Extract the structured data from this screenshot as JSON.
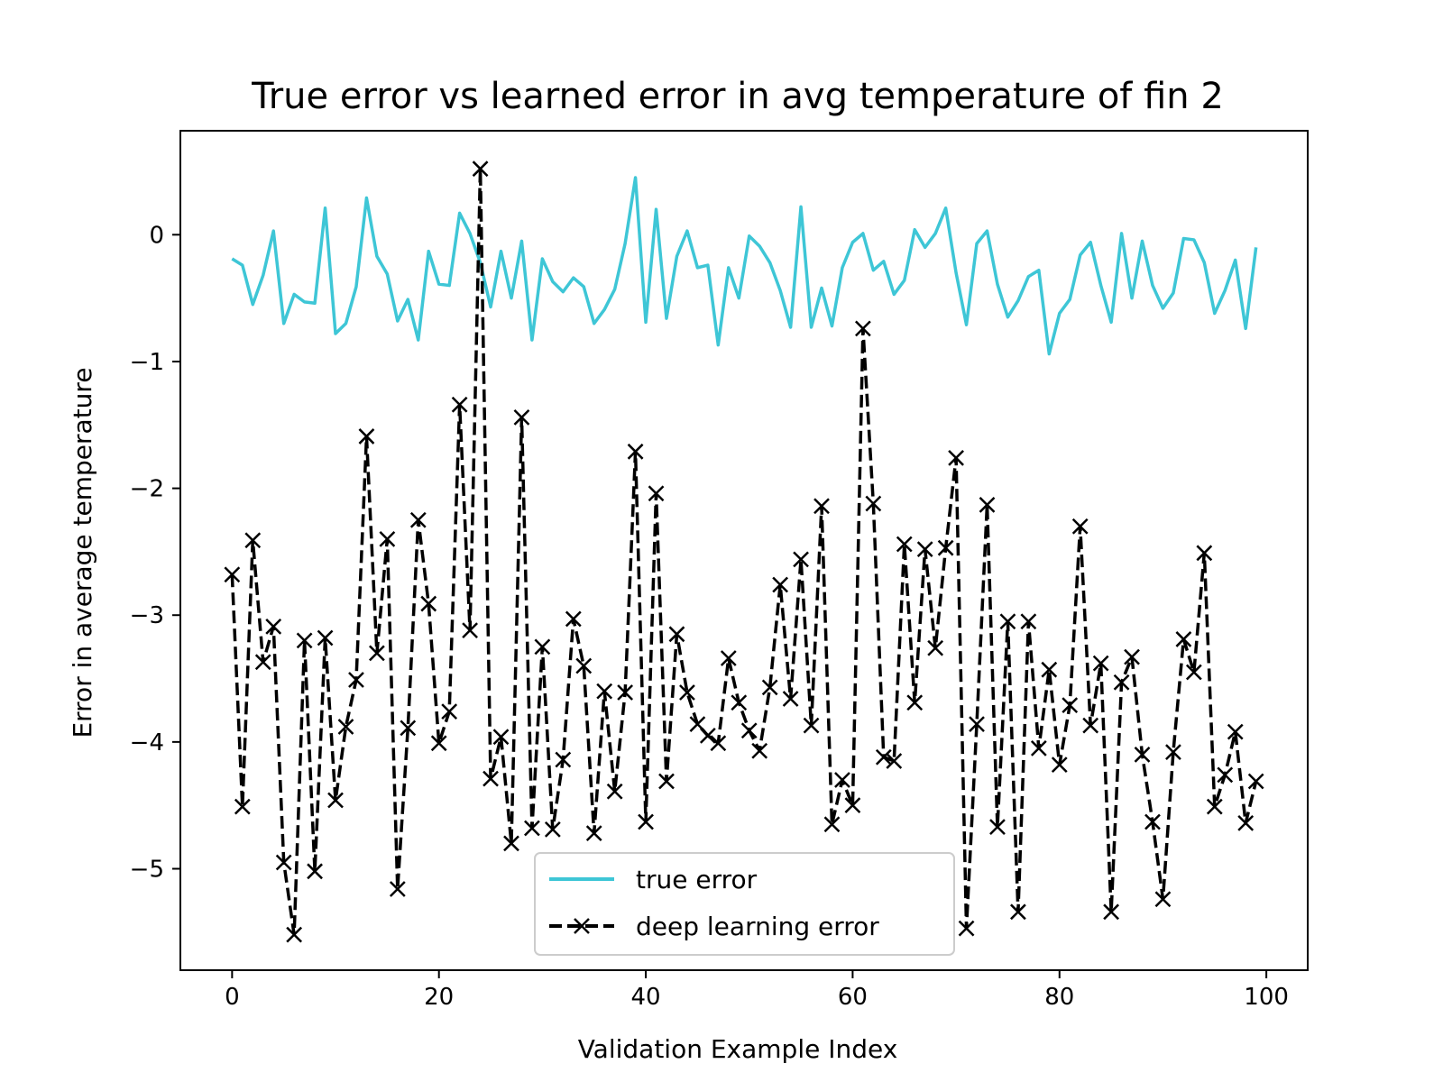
{
  "chart_data": {
    "type": "line",
    "title": "True error vs learned error in avg temperature of fin 2",
    "xlabel": "Validation Example Index",
    "ylabel": "Error in average temperature",
    "xlim": [
      -5,
      104
    ],
    "ylim": [
      -5.8,
      0.82
    ],
    "xticks": [
      0,
      20,
      40,
      60,
      80,
      100
    ],
    "yticks": [
      0,
      -1,
      -2,
      -3,
      -4,
      -5
    ],
    "xtick_labels": [
      "0",
      "20",
      "40",
      "60",
      "80",
      "100"
    ],
    "ytick_labels": [
      "0",
      "−1",
      "−2",
      "−3",
      "−4",
      "−5"
    ],
    "grid": false,
    "legend_position": "bottom-center",
    "series": [
      {
        "name": "true error",
        "color": "#3ec6d6",
        "style": "solid",
        "marker": "none",
        "values": [
          -0.19,
          -0.24,
          -0.55,
          -0.32,
          0.03,
          -0.7,
          -0.47,
          -0.53,
          -0.54,
          0.21,
          -0.78,
          -0.7,
          -0.41,
          0.29,
          -0.17,
          -0.31,
          -0.68,
          -0.51,
          -0.83,
          -0.13,
          -0.39,
          -0.4,
          0.17,
          0.01,
          -0.22,
          -0.57,
          -0.13,
          -0.5,
          -0.05,
          -0.83,
          -0.19,
          -0.37,
          -0.45,
          -0.34,
          -0.41,
          -0.7,
          -0.59,
          -0.43,
          -0.07,
          0.45,
          -0.69,
          0.2,
          -0.66,
          -0.17,
          0.03,
          -0.26,
          -0.24,
          -0.87,
          -0.26,
          -0.5,
          -0.01,
          -0.09,
          -0.22,
          -0.44,
          -0.73,
          0.22,
          -0.73,
          -0.42,
          -0.72,
          -0.26,
          -0.06,
          0.01,
          -0.28,
          -0.21,
          -0.47,
          -0.36,
          0.04,
          -0.1,
          0.01,
          0.21,
          -0.3,
          -0.71,
          -0.07,
          0.03,
          -0.39,
          -0.65,
          -0.52,
          -0.33,
          -0.28,
          -0.94,
          -0.62,
          -0.51,
          -0.16,
          -0.06,
          -0.4,
          -0.69,
          0.01,
          -0.5,
          -0.05,
          -0.4,
          -0.58,
          -0.46,
          -0.03,
          -0.04,
          -0.22,
          -0.62,
          -0.44,
          -0.2,
          -0.74,
          -0.1
        ]
      },
      {
        "name": "deep learning error",
        "color": "#000000",
        "style": "dashed",
        "marker": "x",
        "values": [
          -2.68,
          -4.51,
          -2.41,
          -3.37,
          -3.09,
          -4.95,
          -5.52,
          -3.2,
          -5.02,
          -3.18,
          -4.46,
          -3.88,
          -3.51,
          -1.59,
          -3.3,
          -2.4,
          -5.16,
          -3.89,
          -2.25,
          -2.91,
          -4.01,
          -3.76,
          -1.34,
          -3.12,
          0.52,
          -4.29,
          -3.96,
          -4.8,
          -1.44,
          -4.68,
          -3.25,
          -4.69,
          -4.14,
          -3.03,
          -3.4,
          -4.72,
          -3.6,
          -4.39,
          -3.61,
          -1.71,
          -4.63,
          -2.04,
          -4.31,
          -3.15,
          -3.61,
          -3.86,
          -3.95,
          -4.01,
          -3.34,
          -3.69,
          -3.91,
          -4.07,
          -3.57,
          -2.76,
          -3.66,
          -2.56,
          -3.87,
          -2.14,
          -4.65,
          -4.3,
          -4.5,
          -0.74,
          -2.12,
          -4.12,
          -4.15,
          -2.44,
          -3.69,
          -2.48,
          -3.26,
          -2.47,
          -1.76,
          -5.47,
          -3.86,
          -2.13,
          -4.67,
          -3.05,
          -5.34,
          -3.05,
          -4.05,
          -3.43,
          -4.18,
          -3.71,
          -2.3,
          -3.87,
          -3.38,
          -5.34,
          -3.53,
          -3.33,
          -4.1,
          -4.63,
          -5.24,
          -4.08,
          -3.19,
          -3.45,
          -2.51,
          -4.51,
          -4.26,
          -3.92,
          -4.64,
          -4.31
        ]
      }
    ]
  }
}
